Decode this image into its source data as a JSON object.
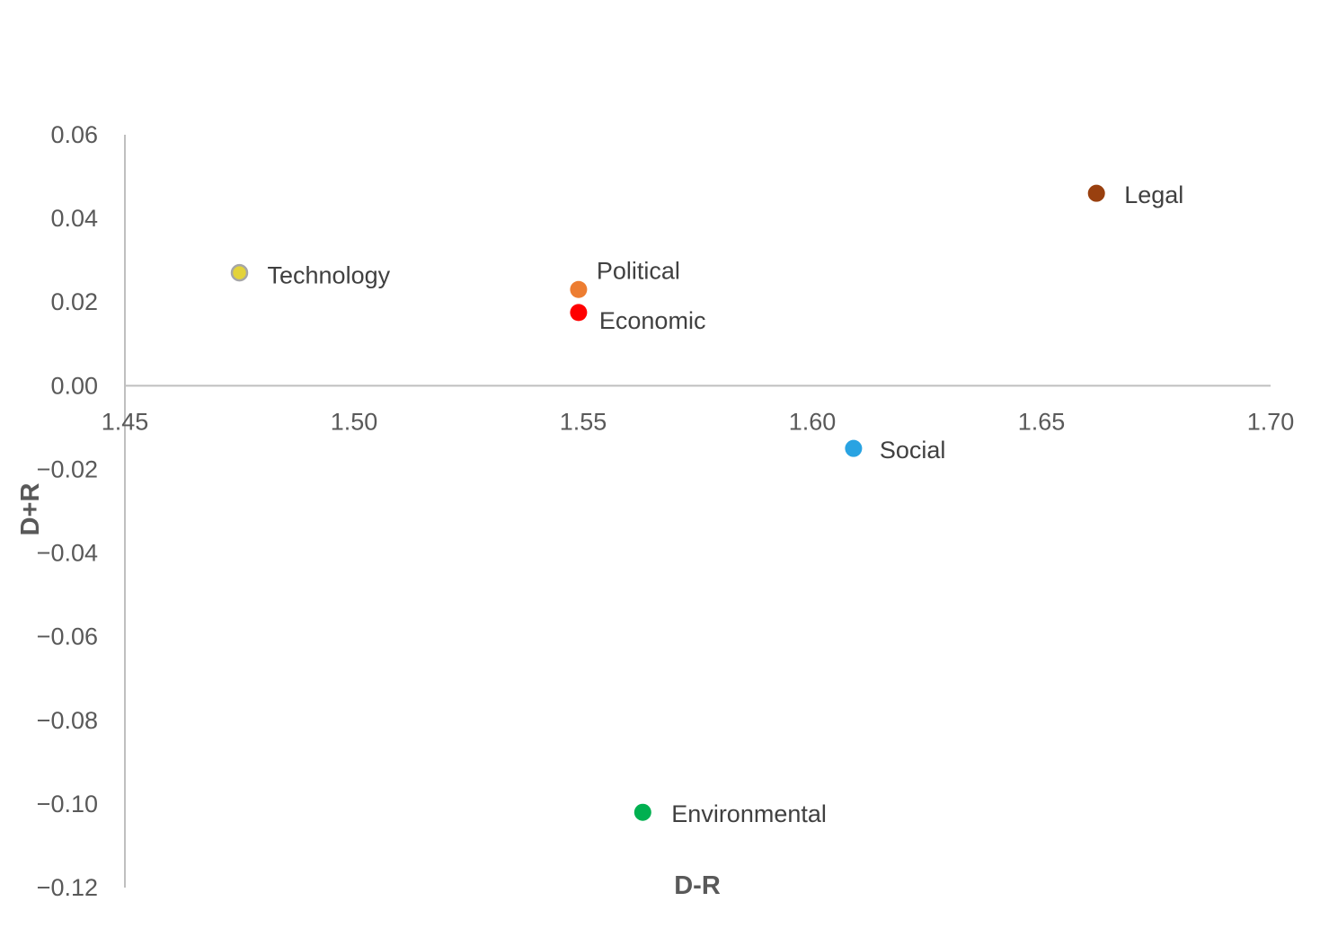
{
  "chart_data": {
    "type": "scatter",
    "title": "",
    "xlabel": "D-R",
    "ylabel": "D+R",
    "xlim": [
      1.45,
      1.7
    ],
    "ylim": [
      -0.12,
      0.06
    ],
    "x_ticks": [
      "1.45",
      "1.50",
      "1.55",
      "1.60",
      "1.65",
      "1.70"
    ],
    "y_ticks": [
      "0.06",
      "0.04",
      "0.02",
      "0.00",
      "−0.02",
      "−0.04",
      "−0.06",
      "−0.08",
      "−0.10",
      "−0.12"
    ],
    "grid": false,
    "legend": "none",
    "points": [
      {
        "label": "Technology",
        "x": 1.475,
        "y": 0.027,
        "color": "#e3d33a",
        "stroke": "#a6a6a6"
      },
      {
        "label": "Political",
        "x": 1.549,
        "y": 0.023,
        "color": "#ed7d31"
      },
      {
        "label": "Economic",
        "x": 1.549,
        "y": 0.0175,
        "color": "#ff0000"
      },
      {
        "label": "Legal",
        "x": 1.662,
        "y": 0.046,
        "color": "#99400f"
      },
      {
        "label": "Social",
        "x": 1.609,
        "y": -0.015,
        "color": "#29a3e2"
      },
      {
        "label": "Environmental",
        "x": 1.563,
        "y": -0.102,
        "color": "#00b050"
      }
    ]
  }
}
